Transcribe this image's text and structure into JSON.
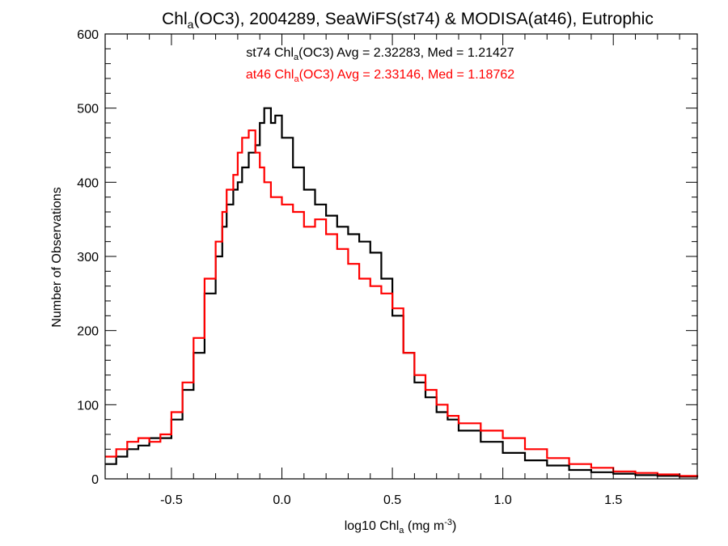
{
  "chart_data": {
    "type": "line",
    "title": {
      "pre": "Chl",
      "sub": "a",
      "post": "(OC3), 2004289, SeaWiFS(st74) & MODISA(at46), Eutrophic"
    },
    "xlabel": {
      "pre": "log10 Chl",
      "sub": "a",
      "mid": " (mg m",
      "sup": "-3",
      "post": ")"
    },
    "ylabel": "Number of Observations",
    "xlim": [
      -0.8,
      1.88
    ],
    "ylim": [
      0,
      600
    ],
    "xticks": [
      -0.5,
      0.0,
      0.5,
      1.0,
      1.5
    ],
    "xtick_labels": [
      "-0.5",
      "0.0",
      "0.5",
      "1.0",
      "1.5"
    ],
    "yticks": [
      0,
      100,
      200,
      300,
      400,
      500,
      600
    ],
    "ytick_labels": [
      "0",
      "100",
      "200",
      "300",
      "400",
      "500",
      "600"
    ],
    "grid": false,
    "step": true,
    "series": [
      {
        "name": "st74",
        "color": "#000000",
        "stat": {
          "pre": "st74 Chl",
          "sub": "a",
          "post": "(OC3) Avg = 2.32283, Med = 1.21427"
        },
        "points": [
          [
            -0.8,
            20
          ],
          [
            -0.75,
            30
          ],
          [
            -0.7,
            40
          ],
          [
            -0.65,
            45
          ],
          [
            -0.6,
            55
          ],
          [
            -0.55,
            55
          ],
          [
            -0.5,
            80
          ],
          [
            -0.45,
            120
          ],
          [
            -0.4,
            170
          ],
          [
            -0.35,
            250
          ],
          [
            -0.3,
            300
          ],
          [
            -0.27,
            340
          ],
          [
            -0.25,
            370
          ],
          [
            -0.22,
            390
          ],
          [
            -0.2,
            400
          ],
          [
            -0.18,
            420
          ],
          [
            -0.15,
            440
          ],
          [
            -0.12,
            450
          ],
          [
            -0.1,
            480
          ],
          [
            -0.08,
            500
          ],
          [
            -0.05,
            480
          ],
          [
            -0.03,
            490
          ],
          [
            0.0,
            460
          ],
          [
            0.05,
            420
          ],
          [
            0.1,
            390
          ],
          [
            0.15,
            370
          ],
          [
            0.2,
            355
          ],
          [
            0.25,
            340
          ],
          [
            0.3,
            330
          ],
          [
            0.35,
            320
          ],
          [
            0.4,
            305
          ],
          [
            0.45,
            270
          ],
          [
            0.5,
            220
          ],
          [
            0.55,
            170
          ],
          [
            0.6,
            130
          ],
          [
            0.65,
            110
          ],
          [
            0.7,
            90
          ],
          [
            0.75,
            80
          ],
          [
            0.8,
            65
          ],
          [
            0.9,
            50
          ],
          [
            1.0,
            35
          ],
          [
            1.1,
            25
          ],
          [
            1.2,
            18
          ],
          [
            1.3,
            12
          ],
          [
            1.4,
            9
          ],
          [
            1.5,
            7
          ],
          [
            1.6,
            5
          ],
          [
            1.7,
            4
          ],
          [
            1.8,
            3
          ],
          [
            1.88,
            2
          ]
        ]
      },
      {
        "name": "at46",
        "color": "#ff0000",
        "stat": {
          "pre": "at46 Chl",
          "sub": "a",
          "post": "(OC3) Avg = 2.33146, Med = 1.18762"
        },
        "points": [
          [
            -0.8,
            30
          ],
          [
            -0.75,
            40
          ],
          [
            -0.7,
            50
          ],
          [
            -0.65,
            55
          ],
          [
            -0.6,
            50
          ],
          [
            -0.55,
            60
          ],
          [
            -0.5,
            90
          ],
          [
            -0.45,
            130
          ],
          [
            -0.4,
            190
          ],
          [
            -0.35,
            270
          ],
          [
            -0.3,
            320
          ],
          [
            -0.27,
            360
          ],
          [
            -0.25,
            390
          ],
          [
            -0.22,
            410
          ],
          [
            -0.2,
            440
          ],
          [
            -0.18,
            460
          ],
          [
            -0.15,
            470
          ],
          [
            -0.12,
            440
          ],
          [
            -0.1,
            420
          ],
          [
            -0.08,
            400
          ],
          [
            -0.05,
            380
          ],
          [
            0.0,
            370
          ],
          [
            0.05,
            360
          ],
          [
            0.1,
            340
          ],
          [
            0.15,
            350
          ],
          [
            0.2,
            330
          ],
          [
            0.25,
            310
          ],
          [
            0.3,
            290
          ],
          [
            0.35,
            270
          ],
          [
            0.4,
            260
          ],
          [
            0.45,
            250
          ],
          [
            0.5,
            230
          ],
          [
            0.55,
            170
          ],
          [
            0.6,
            140
          ],
          [
            0.65,
            120
          ],
          [
            0.7,
            100
          ],
          [
            0.75,
            85
          ],
          [
            0.8,
            75
          ],
          [
            0.9,
            65
          ],
          [
            1.0,
            55
          ],
          [
            1.1,
            40
          ],
          [
            1.2,
            28
          ],
          [
            1.3,
            20
          ],
          [
            1.4,
            15
          ],
          [
            1.5,
            10
          ],
          [
            1.6,
            8
          ],
          [
            1.7,
            6
          ],
          [
            1.8,
            4
          ],
          [
            1.88,
            3
          ]
        ]
      }
    ]
  }
}
